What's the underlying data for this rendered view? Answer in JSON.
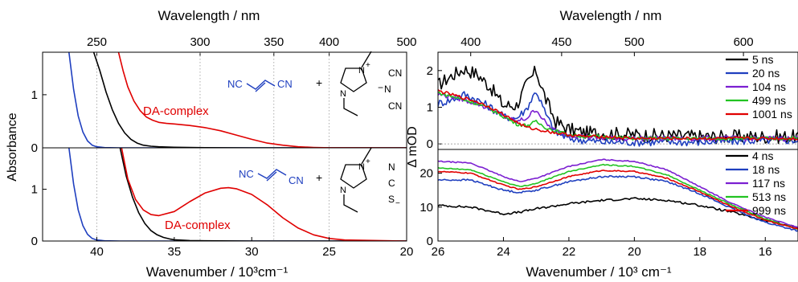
{
  "chart_data": [
    {
      "type": "line",
      "panel": "left",
      "top_xlabel": "Wavelength / nm",
      "top_ticks": [
        "250",
        "300",
        "350",
        "400",
        "500"
      ],
      "top_tick_positions_data": [
        40,
        33.333,
        28.571,
        25,
        20
      ],
      "xlabel": "Wavenumber / 10³cm⁻¹",
      "x_ticks": [
        "40",
        "35",
        "30",
        "25",
        "20"
      ],
      "xlim": [
        43.5,
        20
      ],
      "ylabel": "Absorbance",
      "grid": "vertical dotted at 40, 35, 30, 25",
      "subplots": [
        {
          "ylim": [
            0,
            1.8
          ],
          "y_ticks": [
            "0",
            "1"
          ],
          "annotation": "DA-complex",
          "scheme": {
            "acceptor": [
              "NC",
              "CN"
            ],
            "plus": "+",
            "cation_charge": "+",
            "anion": [
              "CN",
              "N",
              "CN"
            ],
            "anion_charge": "−"
          },
          "series": [
            {
              "color": "#1f3fbf",
              "x": [
                41.8,
                41.5,
                41.2,
                40.9,
                40.6,
                40.3,
                40.0,
                39.5,
                38.5,
                37,
                30,
                20
              ],
              "y": [
                1.8,
                1.1,
                0.6,
                0.3,
                0.13,
                0.05,
                0.02,
                0.005,
                0,
                0,
                0,
                0
              ]
            },
            {
              "color": "#000000",
              "x": [
                40.2,
                39.8,
                39.4,
                39.0,
                38.6,
                38.2,
                37.8,
                37.4,
                37.0,
                36.5,
                36.0,
                35.0,
                33.0,
                30.0,
                20.0
              ],
              "y": [
                1.8,
                1.45,
                1.05,
                0.72,
                0.46,
                0.28,
                0.16,
                0.09,
                0.05,
                0.03,
                0.02,
                0.01,
                0.003,
                0,
                0
              ]
            },
            {
              "color": "#e00000",
              "x": [
                38.6,
                38.3,
                38.0,
                37.6,
                37.2,
                36.8,
                36.4,
                36.0,
                35.5,
                35.0,
                34.0,
                33.0,
                32.0,
                31.0,
                30.0,
                29.0,
                28.0,
                27.0,
                26.0,
                25.0,
                20.0
              ],
              "y": [
                1.8,
                1.45,
                1.15,
                0.88,
                0.7,
                0.58,
                0.52,
                0.48,
                0.46,
                0.45,
                0.42,
                0.38,
                0.32,
                0.24,
                0.16,
                0.09,
                0.05,
                0.02,
                0.008,
                0.002,
                0
              ]
            }
          ]
        },
        {
          "ylim": [
            0,
            1.8
          ],
          "y_ticks": [
            "0",
            "1"
          ],
          "annotation": "DA-complex",
          "scheme": {
            "acceptor": [
              "NC",
              "CN"
            ],
            "plus": "+",
            "cation_charge": "+",
            "anion": [
              "N",
              "C",
              "S"
            ],
            "anion_charge": "−"
          },
          "series": [
            {
              "color": "#1f3fbf",
              "x": [
                41.8,
                41.5,
                41.2,
                40.9,
                40.6,
                40.3,
                40.0,
                39.5,
                38.5,
                37,
                30,
                20
              ],
              "y": [
                1.8,
                1.1,
                0.6,
                0.3,
                0.13,
                0.05,
                0.02,
                0.005,
                0,
                0,
                0,
                0
              ]
            },
            {
              "color": "#000000",
              "x": [
                38.5,
                38.1,
                37.7,
                37.3,
                36.9,
                36.5,
                36.1,
                35.7,
                35.3,
                35.0,
                34.0,
                33.0,
                30.0,
                20.0
              ],
              "y": [
                1.8,
                1.25,
                0.85,
                0.55,
                0.34,
                0.2,
                0.12,
                0.07,
                0.04,
                0.025,
                0.01,
                0.004,
                0,
                0
              ]
            },
            {
              "color": "#e00000",
              "x": [
                38.4,
                38.0,
                37.5,
                37.0,
                36.5,
                36.0,
                35.0,
                34.0,
                33.0,
                32.0,
                31.5,
                31.0,
                30.0,
                29.0,
                28.0,
                27.0,
                26.0,
                25.0,
                24.0,
                20.0
              ],
              "y": [
                1.8,
                1.2,
                0.8,
                0.6,
                0.51,
                0.49,
                0.57,
                0.76,
                0.93,
                1.02,
                1.03,
                1.01,
                0.9,
                0.7,
                0.45,
                0.25,
                0.12,
                0.05,
                0.02,
                0
              ]
            }
          ]
        }
      ]
    },
    {
      "type": "line",
      "panel": "right",
      "top_xlabel": "Wavelength / nm",
      "top_ticks": [
        "400",
        "450",
        "500",
        "600"
      ],
      "top_tick_positions_data": [
        25,
        22.222,
        20,
        16.667
      ],
      "xlabel": "Wavenumber / 10³ cm⁻¹",
      "x_ticks": [
        "26",
        "24",
        "22",
        "20",
        "18",
        "16"
      ],
      "xlim": [
        26,
        15
      ],
      "ylabel": "Δ mOD",
      "subplots": [
        {
          "ylim": [
            -0.15,
            2.5
          ],
          "y_ticks": [
            "0",
            "1",
            "2"
          ],
          "series": [
            {
              "name": "5 ns",
              "color": "#000000",
              "x": [
                26,
                25.6,
                25.2,
                24.8,
                24.4,
                24.0,
                23.6,
                23.3,
                23.0,
                22.7,
                22.4,
                22.0,
                21.5,
                21.0,
                20.0,
                18.0,
                16.0,
                15.0
              ],
              "y": [
                1.6,
                1.85,
                2.05,
                1.9,
                1.55,
                1.05,
                1.05,
                1.6,
                2.0,
                1.2,
                0.6,
                0.4,
                0.3,
                0.3,
                0.25,
                0.2,
                0.2,
                0.2
              ]
            },
            {
              "name": "20 ns",
              "color": "#1f3fbf",
              "x": [
                26,
                25.6,
                25.2,
                24.8,
                24.4,
                24.0,
                23.6,
                23.3,
                23.0,
                22.7,
                22.4,
                22.0,
                21.5,
                21.0,
                20.0,
                18.0,
                16.0,
                15.0
              ],
              "y": [
                1.1,
                1.2,
                1.35,
                1.2,
                1.0,
                0.75,
                0.7,
                0.95,
                1.45,
                0.8,
                0.3,
                0.15,
                0.1,
                0.05,
                0.05,
                0.05,
                0.1,
                0.1
              ]
            },
            {
              "name": "104 ns",
              "color": "#7b1fd1",
              "x": [
                26,
                25.6,
                25.2,
                24.8,
                24.4,
                24.0,
                23.6,
                23.3,
                23.0,
                22.7,
                22.4,
                22.0,
                21.5,
                21.0,
                20.0,
                18.0,
                16.0,
                15.0
              ],
              "y": [
                1.35,
                1.3,
                1.2,
                1.1,
                0.95,
                0.75,
                0.6,
                0.7,
                0.95,
                0.55,
                0.35,
                0.25,
                0.2,
                0.15,
                0.15,
                0.15,
                0.15,
                0.15
              ]
            },
            {
              "name": "499 ns",
              "color": "#22c322",
              "x": [
                26,
                25.6,
                25.2,
                24.8,
                24.4,
                24.0,
                23.6,
                23.3,
                23.0,
                22.7,
                22.4,
                22.0,
                21.5,
                21.0,
                20.0,
                18.0,
                16.0,
                15.0
              ],
              "y": [
                1.4,
                1.3,
                1.2,
                1.1,
                0.95,
                0.75,
                0.55,
                0.5,
                0.6,
                0.45,
                0.35,
                0.25,
                0.2,
                0.2,
                0.15,
                0.15,
                0.15,
                0.15
              ]
            },
            {
              "name": "1001 ns",
              "color": "#e00000",
              "x": [
                26,
                25.6,
                25.2,
                24.8,
                24.4,
                24.0,
                23.6,
                23.3,
                23.0,
                22.7,
                22.4,
                22.0,
                21.5,
                21.0,
                20.0,
                18.0,
                16.0,
                15.0
              ],
              "y": [
                1.45,
                1.35,
                1.25,
                1.15,
                1.0,
                0.8,
                0.6,
                0.45,
                0.4,
                0.35,
                0.3,
                0.25,
                0.2,
                0.2,
                0.15,
                0.15,
                0.15,
                0.15
              ]
            }
          ]
        },
        {
          "ylim": [
            0,
            27
          ],
          "y_ticks": [
            "0",
            "10",
            "20"
          ],
          "series": [
            {
              "name": "4 ns",
              "color": "#000000",
              "x": [
                26,
                25.0,
                24.0,
                23.5,
                23.0,
                22.0,
                21.0,
                20.0,
                19.0,
                18.0,
                17.0,
                16.0,
                15.0
              ],
              "y": [
                10.5,
                10,
                8,
                8.5,
                9.5,
                11,
                12,
                12.5,
                12,
                10.5,
                8.5,
                6,
                4
              ]
            },
            {
              "name": "18 ns",
              "color": "#1f3fbf",
              "x": [
                26,
                25.0,
                24.0,
                23.5,
                23.0,
                22.0,
                21.0,
                20.0,
                19.0,
                18.0,
                17.0,
                16.0,
                15.0
              ],
              "y": [
                18,
                18,
                15,
                14.3,
                15,
                17.5,
                19,
                19,
                17.5,
                14,
                9.5,
                5.5,
                3
              ]
            },
            {
              "name": "117 ns",
              "color": "#7b1fd1",
              "x": [
                26,
                25.0,
                24.0,
                23.5,
                23.0,
                22.0,
                21.0,
                20.0,
                19.0,
                18.0,
                17.0,
                16.0,
                15.0
              ],
              "y": [
                23.5,
                23,
                19,
                17.5,
                18.5,
                22,
                24,
                23.5,
                21,
                16,
                11,
                7,
                4
              ]
            },
            {
              "name": "513 ns",
              "color": "#22c322",
              "x": [
                26,
                25.0,
                24.0,
                23.5,
                23.0,
                22.0,
                21.0,
                20.0,
                19.0,
                18.0,
                17.0,
                16.0,
                15.0
              ],
              "y": [
                21.5,
                21,
                17.5,
                16,
                17,
                20.5,
                22.5,
                22,
                19.5,
                15,
                10.5,
                6.5,
                3.5
              ]
            },
            {
              "name": "999 ns",
              "color": "#e00000",
              "x": [
                26,
                25.0,
                24.0,
                23.5,
                23.0,
                22.0,
                21.0,
                20.0,
                19.0,
                18.0,
                17.0,
                16.0,
                15.0
              ],
              "y": [
                20.5,
                20,
                16.5,
                15.2,
                16,
                19,
                20.8,
                20.5,
                18.5,
                14.5,
                10,
                6.2,
                3.5
              ]
            }
          ]
        }
      ]
    }
  ]
}
